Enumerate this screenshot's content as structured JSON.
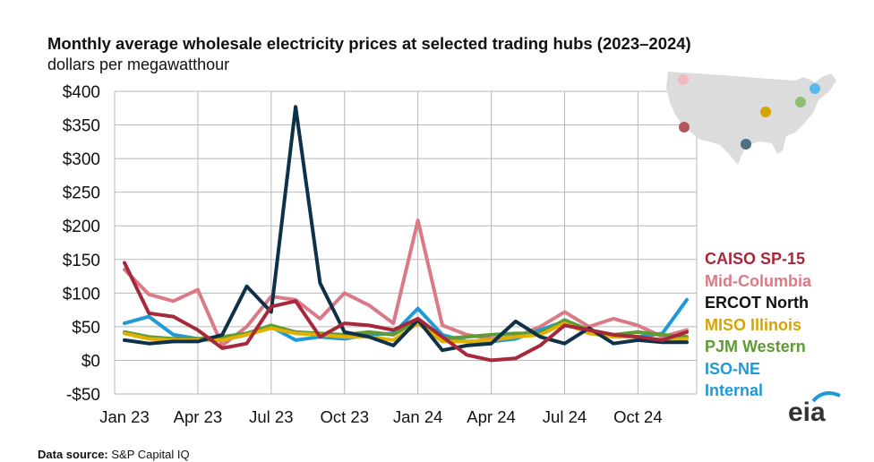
{
  "title": "Monthly average wholesale electricity prices at selected trading hubs (2023–2024)",
  "subtitle": "dollars per megawatthour",
  "source_label": "Data source:",
  "source_text": "S&P Capital IQ",
  "logo_text": "eia",
  "colors": {
    "CAISO SP-15": "#a6283a",
    "Mid-Columbia": "#d97a86",
    "ERCOT North": "#0d3149",
    "MISO Illinois": "#e3b000",
    "PJM Western": "#5f9a35",
    "ISO-NE Internal": "#1f9ad6",
    "grid": "#b8b8b8",
    "map_land": "#dcdcdc"
  },
  "chart_data": {
    "type": "line",
    "title": "Monthly average wholesale electricity prices at selected trading hubs (2023–2024)",
    "ylabel": "dollars per megawatthour",
    "xlabel": "",
    "ylim": [
      -50,
      400
    ],
    "yticks": [
      -50,
      0,
      50,
      100,
      150,
      200,
      250,
      300,
      350,
      400
    ],
    "ytick_labels": [
      "-$50",
      "$0",
      "$50",
      "$100",
      "$150",
      "$200",
      "$250",
      "$300",
      "$350",
      "$400"
    ],
    "x": [
      "Jan 23",
      "Feb 23",
      "Mar 23",
      "Apr 23",
      "May 23",
      "Jun 23",
      "Jul 23",
      "Aug 23",
      "Sep 23",
      "Oct 23",
      "Nov 23",
      "Dec 23",
      "Jan 24",
      "Feb 24",
      "Mar 24",
      "Apr 24",
      "May 24",
      "Jun 24",
      "Jul 24",
      "Aug 24",
      "Sep 24",
      "Oct 24",
      "Nov 24",
      "Dec 24"
    ],
    "xtick_labels": [
      "Jan 23",
      "Apr 23",
      "Jul 23",
      "Oct 23",
      "Jan 24",
      "Apr 24",
      "Jul 24",
      "Oct 24"
    ],
    "xtick_months": [
      "Jan 23",
      "Apr 23",
      "Jul 23",
      "Oct 23",
      "Jan 24",
      "Apr 24",
      "Jul 24",
      "Oct 24"
    ],
    "grid": true,
    "legend_position": "right",
    "series": [
      {
        "name": "Mid-Columbia",
        "values": [
          135,
          98,
          88,
          105,
          22,
          50,
          95,
          90,
          62,
          100,
          82,
          55,
          208,
          52,
          38,
          32,
          35,
          50,
          72,
          50,
          62,
          52,
          35,
          45
        ]
      },
      {
        "name": "ISO-NE Internal",
        "values": [
          55,
          65,
          38,
          32,
          30,
          38,
          50,
          30,
          35,
          32,
          38,
          40,
          77,
          38,
          28,
          28,
          32,
          45,
          58,
          42,
          38,
          35,
          40,
          90
        ]
      },
      {
        "name": "PJM Western",
        "values": [
          42,
          35,
          32,
          32,
          35,
          40,
          52,
          42,
          40,
          38,
          42,
          38,
          60,
          32,
          35,
          38,
          40,
          40,
          60,
          45,
          38,
          42,
          38,
          35
        ]
      },
      {
        "name": "MISO Illinois",
        "values": [
          40,
          32,
          30,
          30,
          30,
          38,
          48,
          40,
          38,
          35,
          35,
          30,
          55,
          28,
          28,
          30,
          35,
          38,
          55,
          40,
          35,
          35,
          30,
          32
        ]
      },
      {
        "name": "ERCOT North",
        "values": [
          30,
          25,
          28,
          28,
          38,
          110,
          72,
          377,
          115,
          42,
          35,
          22,
          60,
          15,
          22,
          25,
          58,
          35,
          25,
          48,
          25,
          30,
          27,
          27
        ]
      },
      {
        "name": "CAISO SP-15",
        "values": [
          145,
          70,
          65,
          45,
          18,
          25,
          80,
          88,
          35,
          55,
          52,
          45,
          62,
          35,
          8,
          0,
          3,
          22,
          52,
          45,
          38,
          35,
          30,
          42
        ]
      }
    ]
  },
  "legend": [
    {
      "name": "CAISO SP-15",
      "color": "#a6283a"
    },
    {
      "name": "Mid-Columbia",
      "color": "#d97a86"
    },
    {
      "name": "ERCOT North",
      "color": "#111111"
    },
    {
      "name": "MISO Illinois",
      "color": "#d4a500"
    },
    {
      "name": "PJM Western",
      "color": "#5f9a35"
    },
    {
      "name": "ISO-NE",
      "color": "#1f9ad6"
    },
    {
      "name": "Internal",
      "color": "#1f9ad6"
    }
  ],
  "map_icon": "us-map-icon",
  "map_markers": [
    {
      "hub": "Mid-Columbia",
      "color": "#f3b9c0"
    },
    {
      "hub": "CAISO SP-15",
      "color": "#b5565e"
    },
    {
      "hub": "ERCOT North",
      "color": "#4f6f82"
    },
    {
      "hub": "MISO Illinois",
      "color": "#d4a500"
    },
    {
      "hub": "PJM Western",
      "color": "#8cbf70"
    },
    {
      "hub": "ISO-NE Internal",
      "color": "#5ab9ec"
    }
  ]
}
